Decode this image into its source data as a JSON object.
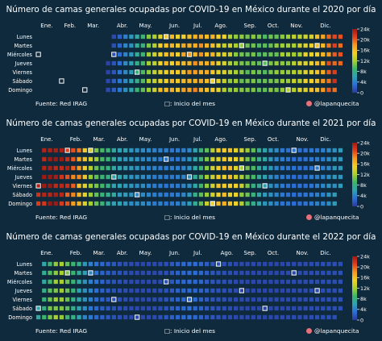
{
  "months": [
    "Ene.",
    "Feb.",
    "Mar.",
    "Abr.",
    "May.",
    "Jun.",
    "Jul.",
    "Ago.",
    "Sep.",
    "Oct.",
    "Nov.",
    "Dic."
  ],
  "weekdays": [
    "Lunes",
    "Martes",
    "Miércoles",
    "Jueves",
    "Viernes",
    "Sábado",
    "Domingo"
  ],
  "colorbar_ticks": [
    "24k",
    "20k",
    "16k",
    "12k",
    "8k",
    "4k",
    "0"
  ],
  "footer": {
    "source": "Fuente: Red IRAG",
    "note": "□: Inicio del mes",
    "handle": "@lapanquecita"
  },
  "colors": {
    "background": "#0f2a3c",
    "empty_cell": "#0f2a3c",
    "month_start_outline": "#ffffff",
    "scale": [
      "#2b3a9e",
      "#2c6ed8",
      "#2ea3b2",
      "#3cb56a",
      "#a6cf30",
      "#f2d12a",
      "#f49a21",
      "#e2401f",
      "#9c1a14"
    ]
  },
  "chart_data": [
    {
      "type": "heatmap",
      "title": "Número de camas generales ocupadas por COVID-19 en México durante el 2020 por día",
      "year": 2020,
      "x_categories": [
        "Ene.",
        "Feb.",
        "Mar.",
        "Abr.",
        "May.",
        "Jun.",
        "Jul.",
        "Ago.",
        "Sep.",
        "Oct.",
        "Nov.",
        "Dic."
      ],
      "y_categories": [
        "Lunes",
        "Martes",
        "Miércoles",
        "Jueves",
        "Viernes",
        "Sábado",
        "Domingo"
      ],
      "value_unit": "camas ocupadas",
      "colorbar_range": [
        0,
        24000
      ],
      "data_start": "2020-03-26",
      "weekly_values_from_data_start": [
        400,
        1500,
        3000,
        4500,
        5500,
        7500,
        9500,
        11500,
        13500,
        15000,
        15500,
        15700,
        15800,
        16500,
        17000,
        17500,
        17500,
        17000,
        15500,
        14500,
        13500,
        12500,
        11500,
        11000,
        10500,
        10500,
        10000,
        10000,
        10500,
        11000,
        11500,
        12000,
        12500,
        13000,
        14000,
        15000,
        15500,
        17000,
        19500,
        20500,
        21000
      ]
    },
    {
      "type": "heatmap",
      "title": "Número de camas generales ocupadas por COVID-19 en México durante el 2021 por día",
      "year": 2021,
      "x_categories": [
        "Ene.",
        "Feb.",
        "Mar.",
        "Abr.",
        "May.",
        "Jun.",
        "Jul.",
        "Ago.",
        "Sep.",
        "Oct.",
        "Nov.",
        "Dic."
      ],
      "y_categories": [
        "Lunes",
        "Martes",
        "Miércoles",
        "Jueves",
        "Viernes",
        "Sábado",
        "Domingo"
      ],
      "value_unit": "camas ocupadas",
      "colorbar_range": [
        0,
        24000
      ],
      "data_start": "2021-01-01",
      "weekly_values_from_data_start": [
        22000,
        23000,
        24000,
        24000,
        23000,
        21500,
        19500,
        17000,
        14500,
        12000,
        10500,
        9000,
        7500,
        6500,
        5800,
        5300,
        5000,
        4800,
        4500,
        4200,
        3900,
        3700,
        3600,
        3600,
        3800,
        4200,
        5200,
        7000,
        9500,
        12000,
        14000,
        15500,
        16000,
        15500,
        14500,
        12500,
        10500,
        8500,
        7000,
        5800,
        4800,
        4000,
        3500,
        3200,
        3000,
        3000,
        3200,
        3500,
        3800,
        4200,
        4800,
        5200,
        5500
      ]
    },
    {
      "type": "heatmap",
      "title": "Número de camas generales ocupadas por COVID-19 en México durante el 2022 por día",
      "year": 2022,
      "x_categories": [
        "Ene.",
        "Feb.",
        "Mar.",
        "Abr.",
        "May.",
        "Jun.",
        "Jul.",
        "Ago.",
        "Sep.",
        "Oct.",
        "Nov.",
        "Dic."
      ],
      "y_categories": [
        "Lunes",
        "Martes",
        "Miércoles",
        "Jueves",
        "Viernes",
        "Sábado",
        "Domingo"
      ],
      "value_unit": "camas ocupadas",
      "colorbar_range": [
        0,
        24000
      ],
      "data_start": "2022-01-01",
      "weekly_values_from_data_start": [
        6000,
        8500,
        10500,
        11500,
        11000,
        9500,
        7800,
        6000,
        4600,
        3500,
        2700,
        2100,
        1700,
        1400,
        1200,
        1000,
        900,
        800,
        800,
        800,
        900,
        1100,
        1500,
        2000,
        2500,
        2800,
        2900,
        2600,
        2200,
        1800,
        1500,
        1300,
        1100,
        1000,
        900,
        800,
        800,
        750,
        700,
        700,
        700,
        750,
        800,
        850,
        900,
        950,
        1000,
        1050,
        1100,
        1100,
        1150,
        1200,
        1200
      ]
    }
  ]
}
